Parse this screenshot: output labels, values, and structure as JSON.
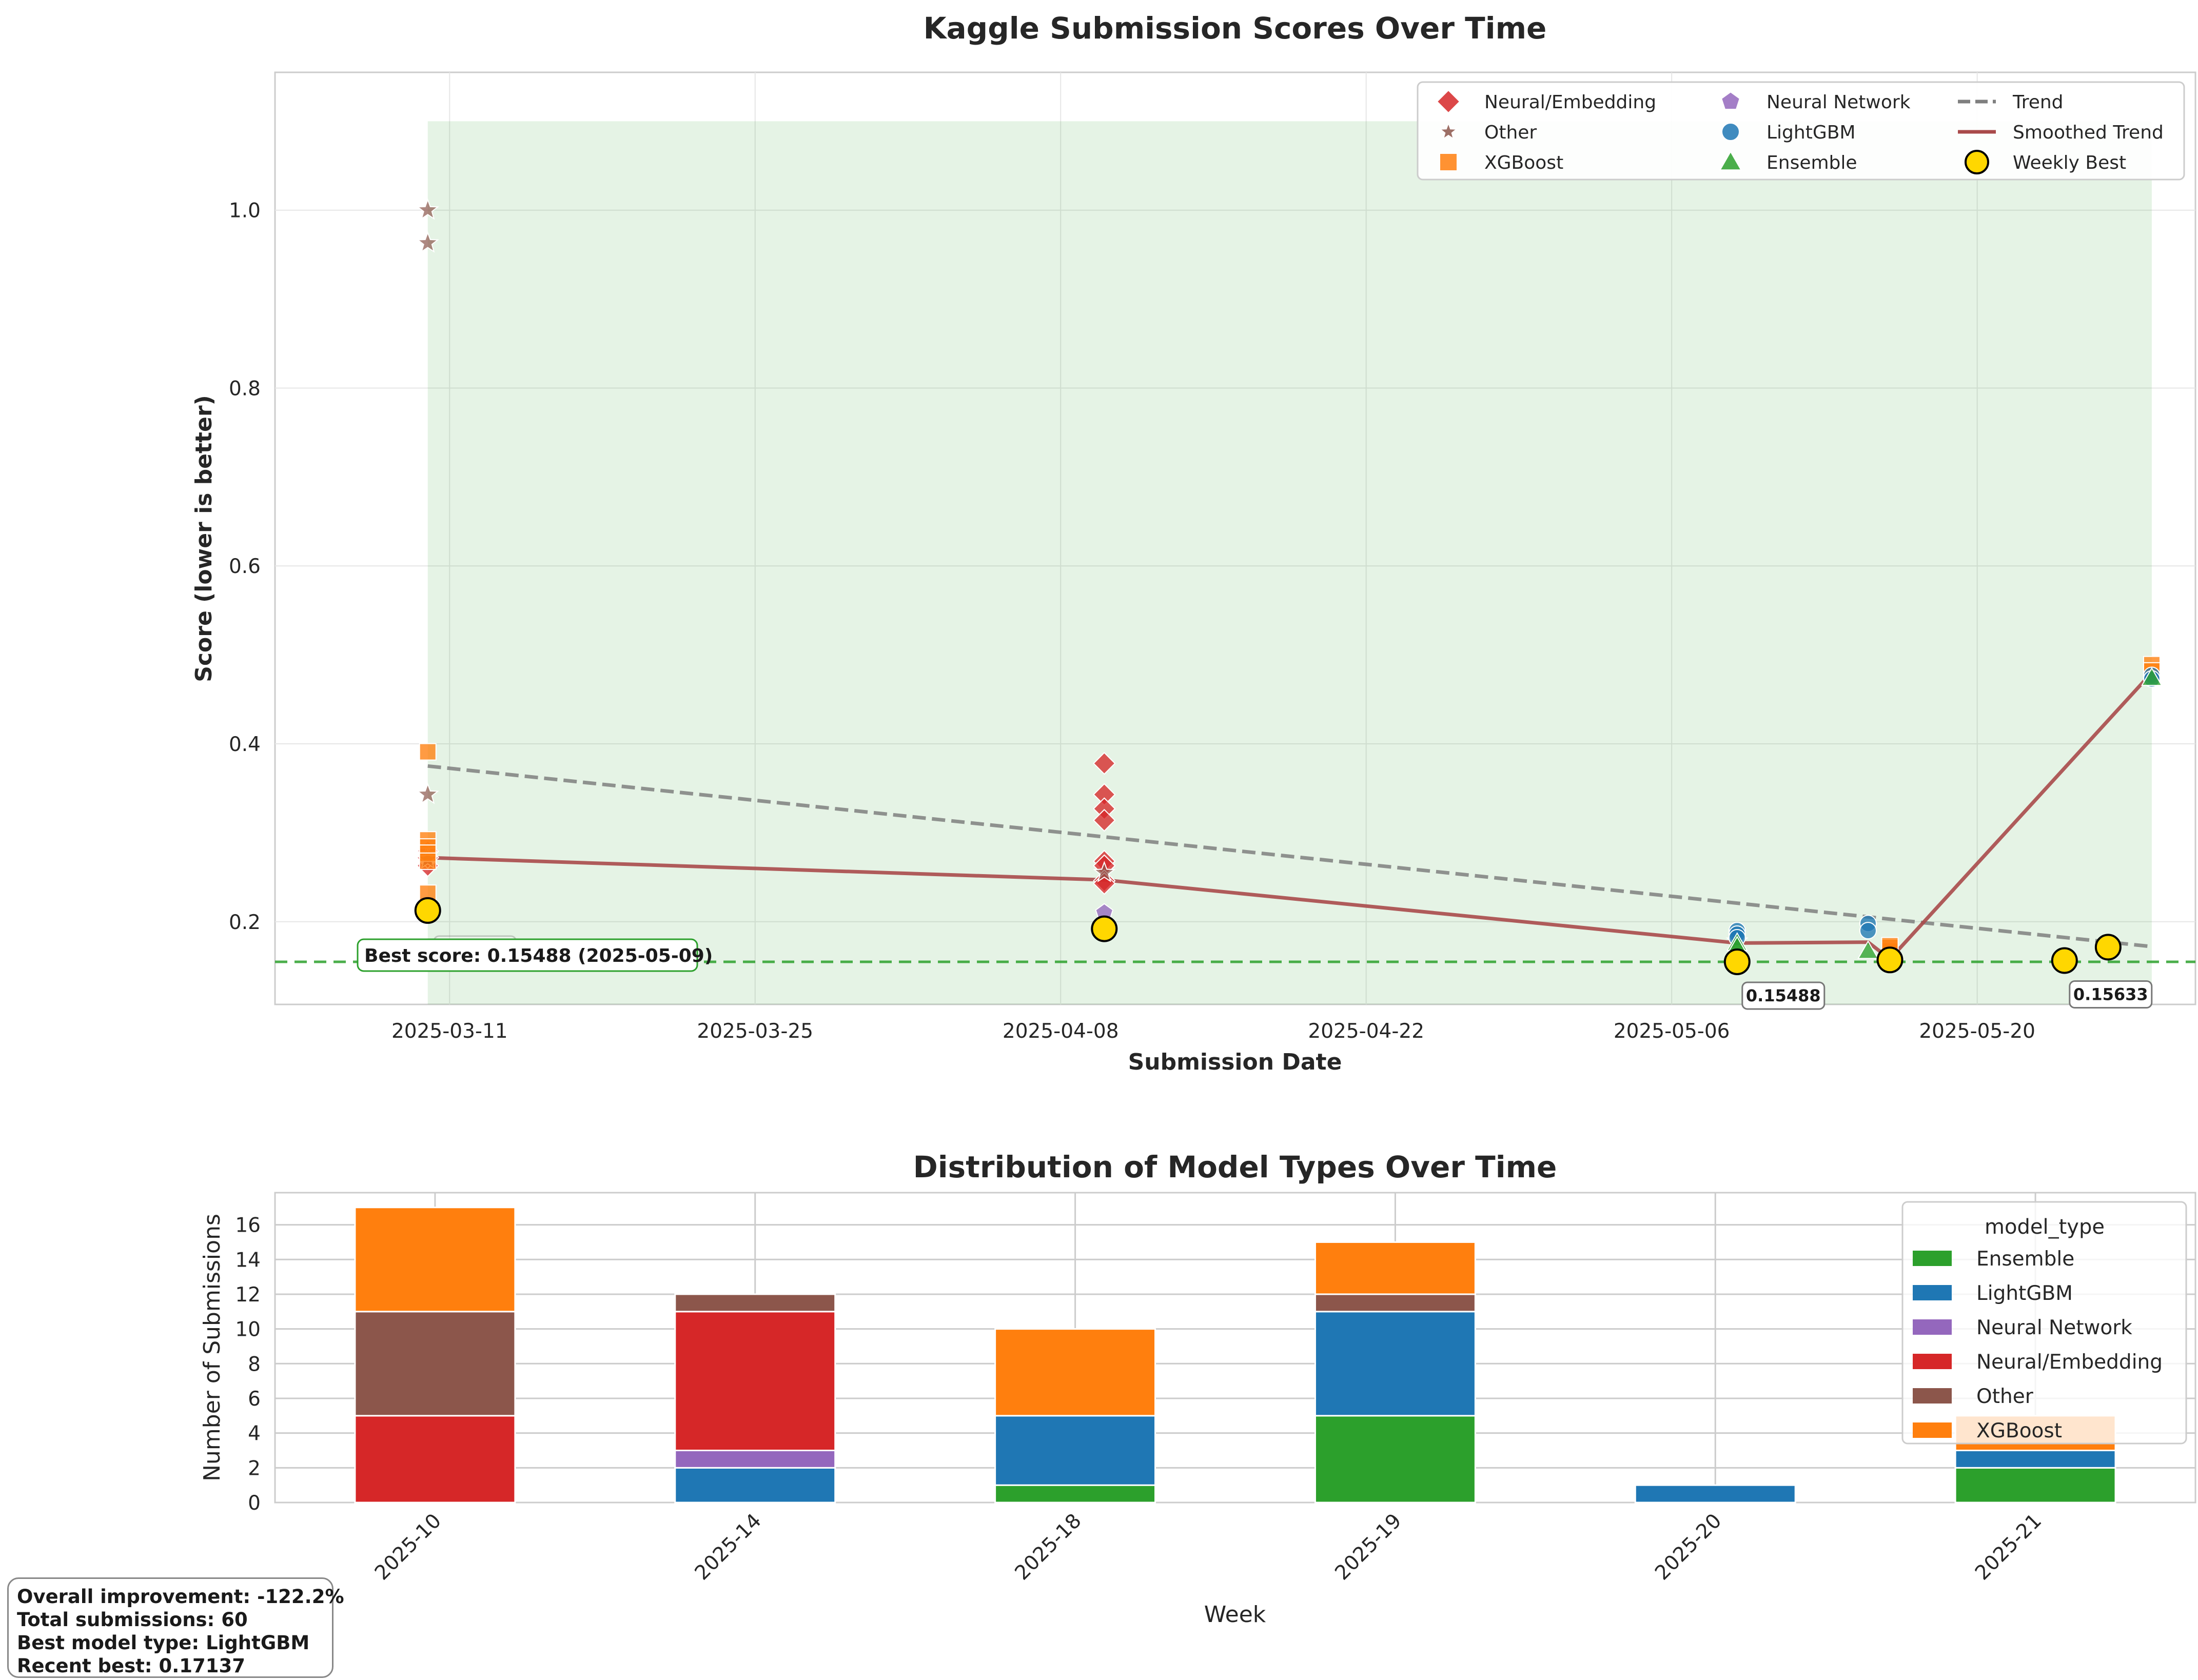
{
  "colors": {
    "Neural/Embedding": "#d62728",
    "Other": "#8c564b",
    "XGBoost": "#ff7f0e",
    "Neural Network": "#9467bd",
    "LightGBM": "#1f77b4",
    "Ensemble": "#2ca02c",
    "trend": "#7f7f7f",
    "smoothed": "#a94a4a",
    "weekly_best": "#ffd700",
    "best_line": "#2ca02c"
  },
  "chart_data": [
    {
      "type": "scatter",
      "title": "Kaggle Submission Scores Over Time",
      "xlabel": "Submission Date",
      "ylabel": "Score (lower is better)",
      "x_ticks": [
        "2025-03-11",
        "2025-03-25",
        "2025-04-08",
        "2025-04-22",
        "2025-05-06",
        "2025-05-20"
      ],
      "y_ticks": [
        "0.2",
        "0.4",
        "0.6",
        "0.8",
        "1.0"
      ],
      "xlim": [
        "2025-03-03",
        "2025-05-30"
      ],
      "ylim": [
        0.107,
        1.155
      ],
      "grid": true,
      "legend_position": "top-right",
      "legend": [
        {
          "label": "Neural/Embedding",
          "marker": "diamond",
          "color_key": "Neural/Embedding"
        },
        {
          "label": "Other",
          "marker": "star",
          "color_key": "Other"
        },
        {
          "label": "XGBoost",
          "marker": "square",
          "color_key": "XGBoost"
        },
        {
          "label": "Neural Network",
          "marker": "pentagon",
          "color_key": "Neural Network"
        },
        {
          "label": "LightGBM",
          "marker": "circle",
          "color_key": "LightGBM"
        },
        {
          "label": "Ensemble",
          "marker": "triangle",
          "color_key": "Ensemble"
        },
        {
          "label": "Trend",
          "marker": "dash",
          "color_key": "trend"
        },
        {
          "label": "Smoothed Trend",
          "marker": "line",
          "color_key": "smoothed"
        },
        {
          "label": "Weekly Best",
          "marker": "bigcircle",
          "color_key": "weekly_best"
        }
      ],
      "shaded_region": {
        "x": [
          "2025-03-10",
          "2025-05-28"
        ],
        "y": [
          0.107,
          1.1
        ]
      },
      "best_score_line": 0.15488,
      "best_score_label": "Best score: 0.15488 (2025-05-09)",
      "annotations": [
        {
          "text": "0.21259",
          "x": "2025-03-10",
          "y": 0.21259,
          "faded": true
        },
        {
          "text": "0.15488",
          "x": "2025-05-09",
          "y": 0.15488
        },
        {
          "text": "0.15633",
          "x": "2025-05-24",
          "y": 0.15633
        }
      ],
      "series": [
        {
          "name": "Neural/Embedding",
          "points": [
            {
              "x": "2025-03-10",
              "y": 0.263
            },
            {
              "x": "2025-03-10",
              "y": 0.272
            },
            {
              "x": "2025-03-10",
              "y": 0.279
            },
            {
              "x": "2025-04-10",
              "y": 0.378
            },
            {
              "x": "2025-04-10",
              "y": 0.343
            },
            {
              "x": "2025-04-10",
              "y": 0.327
            },
            {
              "x": "2025-04-10",
              "y": 0.314
            },
            {
              "x": "2025-04-10",
              "y": 0.268
            },
            {
              "x": "2025-04-10",
              "y": 0.263
            },
            {
              "x": "2025-04-10",
              "y": 0.246
            },
            {
              "x": "2025-04-10",
              "y": 0.243
            }
          ]
        },
        {
          "name": "Other",
          "points": [
            {
              "x": "2025-03-10",
              "y": 1.0
            },
            {
              "x": "2025-03-10",
              "y": 0.963
            },
            {
              "x": "2025-03-10",
              "y": 0.343
            },
            {
              "x": "2025-03-10",
              "y": 0.275
            },
            {
              "x": "2025-03-10",
              "y": 0.27
            },
            {
              "x": "2025-04-10",
              "y": 0.255
            },
            {
              "x": "2025-05-09",
              "y": 0.178
            }
          ]
        },
        {
          "name": "XGBoost",
          "points": [
            {
              "x": "2025-03-10",
              "y": 0.391
            },
            {
              "x": "2025-03-10",
              "y": 0.292
            },
            {
              "x": "2025-03-10",
              "y": 0.284
            },
            {
              "x": "2025-03-10",
              "y": 0.277
            },
            {
              "x": "2025-03-10",
              "y": 0.268
            },
            {
              "x": "2025-03-10",
              "y": 0.232
            },
            {
              "x": "2025-05-16",
              "y": 0.167
            },
            {
              "x": "2025-05-16",
              "y": 0.171
            },
            {
              "x": "2025-05-16",
              "y": 0.173
            },
            {
              "x": "2025-05-28",
              "y": 0.489
            },
            {
              "x": "2025-05-28",
              "y": 0.482
            }
          ]
        },
        {
          "name": "Neural Network",
          "points": [
            {
              "x": "2025-04-10",
              "y": 0.21
            }
          ]
        },
        {
          "name": "LightGBM",
          "points": [
            {
              "x": "2025-05-09",
              "y": 0.19
            },
            {
              "x": "2025-05-09",
              "y": 0.186
            },
            {
              "x": "2025-05-09",
              "y": 0.182
            },
            {
              "x": "2025-05-15",
              "y": 0.198
            },
            {
              "x": "2025-05-15",
              "y": 0.19
            },
            {
              "x": "2025-05-28",
              "y": 0.477
            },
            {
              "x": "2025-05-28",
              "y": 0.473
            }
          ]
        },
        {
          "name": "Ensemble",
          "points": [
            {
              "x": "2025-05-09",
              "y": 0.176
            },
            {
              "x": "2025-05-09",
              "y": 0.172
            },
            {
              "x": "2025-05-15",
              "y": 0.167
            },
            {
              "x": "2025-05-28",
              "y": 0.474
            }
          ]
        },
        {
          "name": "Trend",
          "line": true,
          "points": [
            {
              "x": "2025-03-10",
              "y": 0.375
            },
            {
              "x": "2025-05-28",
              "y": 0.172
            }
          ]
        },
        {
          "name": "Smoothed Trend",
          "line": true,
          "points": [
            {
              "x": "2025-03-10",
              "y": 0.272
            },
            {
              "x": "2025-04-10",
              "y": 0.247
            },
            {
              "x": "2025-05-09",
              "y": 0.176
            },
            {
              "x": "2025-05-15",
              "y": 0.177
            },
            {
              "x": "2025-05-16",
              "y": 0.158
            },
            {
              "x": "2025-05-28",
              "y": 0.48
            }
          ]
        },
        {
          "name": "Weekly Best",
          "points": [
            {
              "x": "2025-03-10",
              "y": 0.21259
            },
            {
              "x": "2025-04-10",
              "y": 0.192
            },
            {
              "x": "2025-05-09",
              "y": 0.15488
            },
            {
              "x": "2025-05-16",
              "y": 0.157
            },
            {
              "x": "2025-05-24",
              "y": 0.15633
            },
            {
              "x": "2025-05-26",
              "y": 0.17137
            }
          ]
        }
      ]
    },
    {
      "type": "bar",
      "stacked": true,
      "title": "Distribution of Model Types Over Time",
      "xlabel": "Week",
      "ylabel": "Number of Submissions",
      "categories": [
        "2025-10",
        "2025-14",
        "2025-18",
        "2025-19",
        "2025-20",
        "2025-21"
      ],
      "y_ticks": [
        "0",
        "2",
        "4",
        "6",
        "8",
        "10",
        "12",
        "14",
        "16"
      ],
      "ylim": [
        0,
        17.85
      ],
      "grid": true,
      "legend_title": "model_type",
      "legend_position": "upper-right",
      "series": [
        {
          "name": "Ensemble",
          "values": [
            0,
            0,
            1,
            5,
            0,
            2
          ]
        },
        {
          "name": "LightGBM",
          "values": [
            0,
            2,
            4,
            6,
            1,
            1
          ]
        },
        {
          "name": "Neural Network",
          "values": [
            0,
            1,
            0,
            0,
            0,
            0
          ]
        },
        {
          "name": "Neural/Embedding",
          "values": [
            5,
            8,
            0,
            0,
            0,
            0
          ]
        },
        {
          "name": "Other",
          "values": [
            6,
            1,
            0,
            1,
            0,
            0
          ]
        },
        {
          "name": "XGBoost",
          "values": [
            6,
            0,
            5,
            3,
            0,
            2
          ]
        }
      ]
    }
  ],
  "summary": {
    "line1": "Overall improvement: -122.2%",
    "line2": "Total submissions: 60",
    "line3": "Best model type: LightGBM",
    "line4": "Recent best: 0.17137"
  }
}
